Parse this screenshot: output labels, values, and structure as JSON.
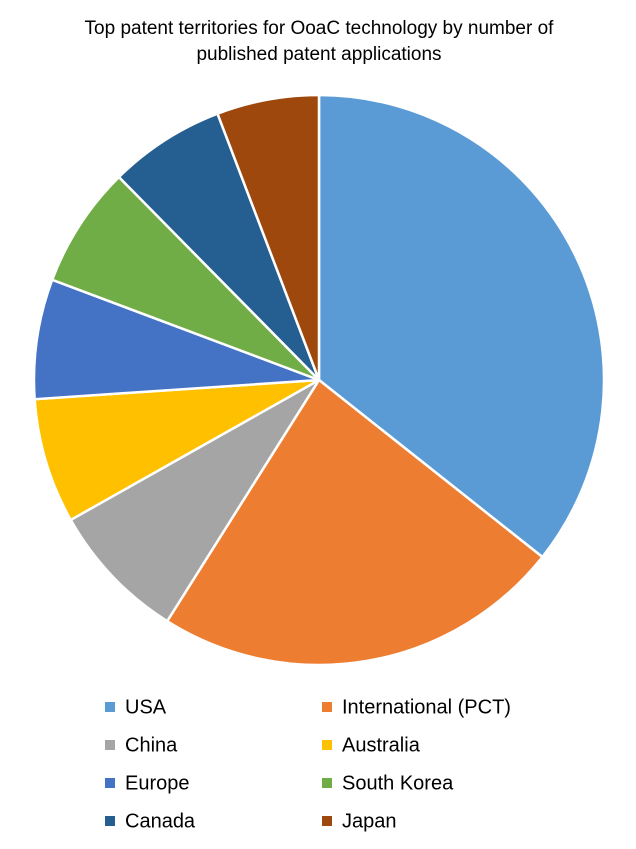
{
  "chart_data": {
    "type": "pie",
    "title": "Top patent territories for OoaC technology by number of published patent applications",
    "categories": [
      "USA",
      "International (PCT)",
      "China",
      "Australia",
      "Europe",
      "South Korea",
      "Canada",
      "Japan"
    ],
    "values": [
      35.7,
      23.3,
      7.9,
      7.1,
      6.8,
      6.9,
      6.6,
      5.8
    ],
    "colors": [
      "#5b9bd5",
      "#ed7d31",
      "#a5a5a5",
      "#ffc000",
      "#4472c4",
      "#70ad47",
      "#255e91",
      "#9e480e"
    ],
    "legend": "bottom"
  }
}
